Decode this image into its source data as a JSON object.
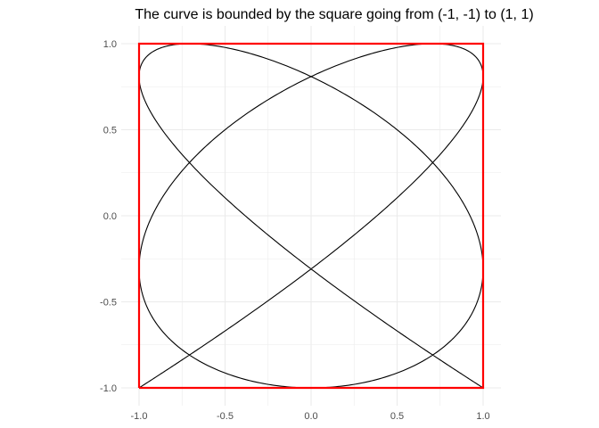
{
  "chart_data": {
    "type": "line",
    "title": "The curve is bounded by the square going from (-1, -1) to (1, 1)",
    "xlabel": "",
    "ylabel": "",
    "xlim": [
      -1,
      1
    ],
    "ylim": [
      -1,
      1
    ],
    "x_ticks": [
      -1.0,
      -0.5,
      0.0,
      0.5,
      1.0
    ],
    "y_ticks": [
      -1.0,
      -0.5,
      0.0,
      0.5,
      1.0
    ],
    "x_tick_labels": [
      "-1.0",
      "-0.5",
      "0.0",
      "0.5",
      "1.0"
    ],
    "y_tick_labels": [
      "-1.0",
      "-0.5",
      "0.0",
      "0.5",
      "1.0"
    ],
    "grid": true,
    "curve": {
      "kind": "lissajous",
      "x_frequency": 5,
      "y_frequency": 4,
      "phase": 0.3927,
      "color": "#000000"
    },
    "bounding_square": {
      "x": [
        -1,
        1,
        1,
        -1,
        -1
      ],
      "y": [
        -1,
        -1,
        1,
        1,
        -1
      ],
      "color": "#ff0000"
    },
    "background": "#ffffff",
    "grid_color": "#ebebeb"
  }
}
